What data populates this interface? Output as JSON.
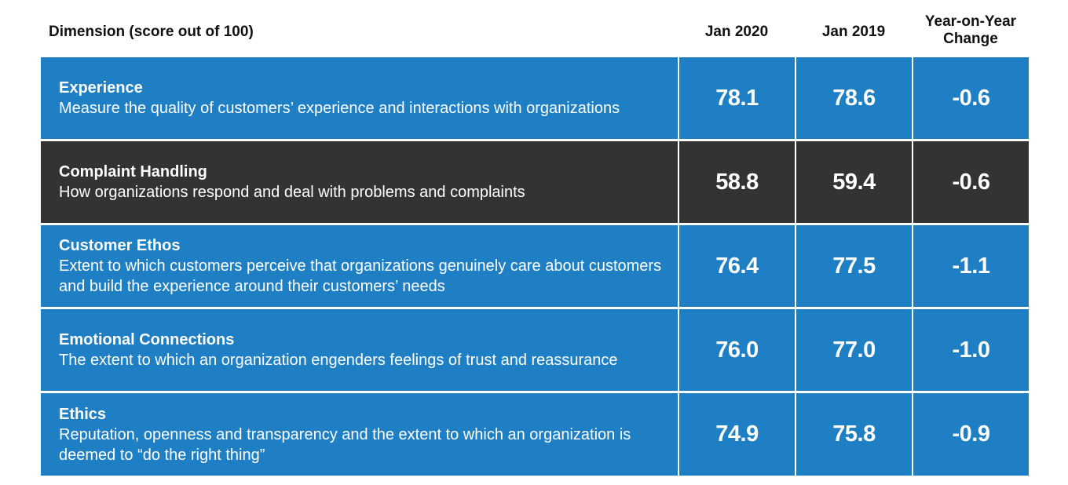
{
  "chart_data": {
    "type": "table",
    "columns": [
      "Dimension (score out of 100)",
      "Jan 2020",
      "Jan 2019",
      "Year-on-Year Change"
    ],
    "column_lines": {
      "yoy": [
        "Year-on-Year",
        "Change"
      ]
    },
    "rows": [
      {
        "title": "Experience",
        "description": "Measure the quality of customers’ experience and interactions with organizations",
        "jan_2020": "78.1",
        "jan_2019": "78.6",
        "yoy_change": "-0.6",
        "highlight": false
      },
      {
        "title": "Complaint Handling",
        "description": "How organizations respond and deal with problems and complaints",
        "jan_2020": "58.8",
        "jan_2019": "59.4",
        "yoy_change": "-0.6",
        "highlight": true
      },
      {
        "title": "Customer Ethos",
        "description": "Extent to which customers perceive that organizations genuinely care about customers and build the experience around their customers’ needs",
        "jan_2020": "76.4",
        "jan_2019": "77.5",
        "yoy_change": "-1.1",
        "highlight": false
      },
      {
        "title": "Emotional Connections",
        "description": "The extent to which an organization engenders feelings of trust and reassurance",
        "jan_2020": "76.0",
        "jan_2019": "77.0",
        "yoy_change": "-1.0",
        "highlight": false
      },
      {
        "title": "Ethics",
        "description": "Reputation, openness and transparency and the extent to which an organization is deemed to “do the right thing”",
        "jan_2020": "74.9",
        "jan_2019": "75.8",
        "yoy_change": "-0.9",
        "highlight": false
      }
    ]
  },
  "colors": {
    "row_default": "#1f7fc4",
    "row_highlight": "#333333",
    "text_on_row": "#ffffff",
    "header_text": "#111111"
  }
}
